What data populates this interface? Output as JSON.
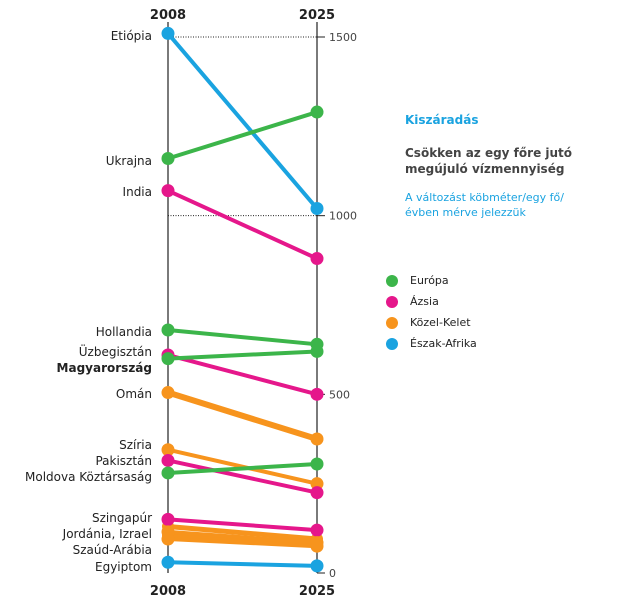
{
  "chart_data": {
    "type": "slope",
    "title": "Kiszáradás",
    "subtitle": "Csökken az egy főre jutó megújuló vízmennyiség",
    "note": "A változást köbméter/egy fő/évben mérve jelezzük",
    "x": [
      "2008",
      "2025"
    ],
    "ylim": [
      0,
      1500
    ],
    "yticks": [
      0,
      500,
      1000,
      1500
    ],
    "grid_lines": [
      1000,
      1500
    ],
    "regions": [
      {
        "name": "Európa",
        "color": "#3cb54a"
      },
      {
        "name": "Ázsia",
        "color": "#e5178b"
      },
      {
        "name": "Közel-Kelet",
        "color": "#f7941d"
      },
      {
        "name": "Észak-Afrika",
        "color": "#1aa3e0"
      }
    ],
    "series": [
      {
        "name": "Etiópia",
        "region": "Észak-Afrika",
        "values": [
          1510,
          1020
        ]
      },
      {
        "name": "Ukrajna",
        "region": "Európa",
        "values": [
          1160,
          1290
        ]
      },
      {
        "name": "India",
        "region": "Ázsia",
        "values": [
          1070,
          880
        ]
      },
      {
        "name": "Hollandia",
        "region": "Európa",
        "values": [
          680,
          640
        ]
      },
      {
        "name": "Üzbegisztán",
        "region": "Ázsia",
        "values": [
          610,
          500
        ]
      },
      {
        "name": "Magyarország",
        "region": "Európa",
        "values": [
          600,
          620
        ],
        "highlight": true
      },
      {
        "name": "Omán",
        "region": "Közel-Kelet",
        "values": [
          505,
          375
        ],
        "thick": true
      },
      {
        "name": "Szíria",
        "region": "Közel-Kelet",
        "values": [
          345,
          250
        ]
      },
      {
        "name": "Pakisztán",
        "region": "Ázsia",
        "values": [
          315,
          225
        ]
      },
      {
        "name": "Moldova Köztársaság",
        "region": "Európa",
        "values": [
          280,
          305
        ]
      },
      {
        "name": "Szingapúr",
        "region": "Ázsia",
        "values": [
          150,
          120
        ]
      },
      {
        "name": "Jordánia, Izrael",
        "region": "Közel-Kelet",
        "values": [
          115,
          85
        ]
      },
      {
        "name": "Szaúd-Arábia",
        "region": "Közel-Kelet",
        "values": [
          95,
          75
        ]
      },
      {
        "name": "Egyiptom",
        "region": "Észak-Afrika",
        "values": [
          30,
          20
        ]
      }
    ],
    "hidden_series": [
      {
        "region": "Közel-Kelet",
        "values": [
          130,
          95
        ]
      },
      {
        "region": "Közel-Kelet",
        "values": [
          105,
          80
        ]
      }
    ]
  }
}
